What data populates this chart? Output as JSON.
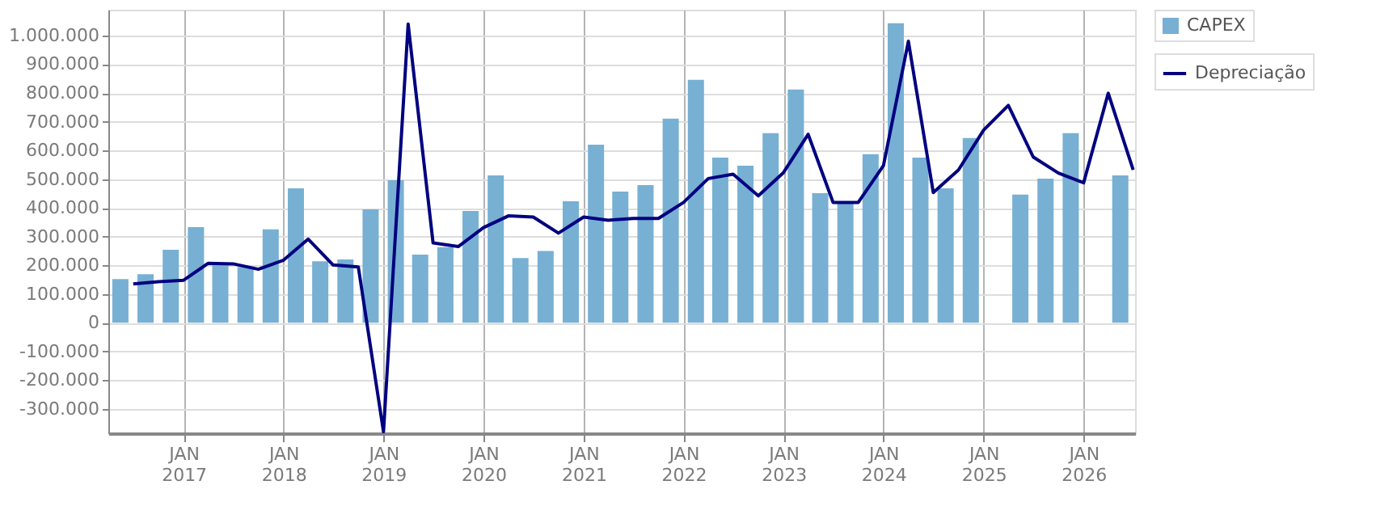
{
  "chart_data": {
    "type": "bar",
    "xlim": [
      "2016-04-01",
      "2026-07-08"
    ],
    "xticks": [
      {
        "value": "2017-01-01",
        "label": "JAN\n2017"
      },
      {
        "value": "2018-01-01",
        "label": "JAN\n2018"
      },
      {
        "value": "2019-01-01",
        "label": "JAN\n2019"
      },
      {
        "value": "2020-01-01",
        "label": "JAN\n2020"
      },
      {
        "value": "2021-01-01",
        "label": "JAN\n2021"
      },
      {
        "value": "2022-01-01",
        "label": "JAN\n2022"
      },
      {
        "value": "2023-01-01",
        "label": "JAN\n2023"
      },
      {
        "value": "2024-01-01",
        "label": "JAN\n2024"
      },
      {
        "value": "2025-01-01",
        "label": "JAN\n2025"
      },
      {
        "value": "2026-01-01",
        "label": "JAN\n2026"
      }
    ],
    "ylim": [
      -385000,
      1090000
    ],
    "yticks": [
      {
        "value": -300000,
        "label": "-300.000"
      },
      {
        "value": -200000,
        "label": "-200.000"
      },
      {
        "value": -100000,
        "label": "-100.000"
      },
      0,
      {
        "value": 100000,
        "label": "100.000"
      },
      {
        "value": 200000,
        "label": "200.000"
      },
      {
        "value": 300000,
        "label": "300.000"
      },
      {
        "value": 400000,
        "label": "400.000"
      },
      {
        "value": 500000,
        "label": "500.000"
      },
      {
        "value": 600000,
        "label": "600.000"
      },
      {
        "value": 700000,
        "label": "700.000"
      },
      {
        "value": 800000,
        "label": "800.000"
      },
      {
        "value": 900000,
        "label": "900.000"
      },
      {
        "value": 1000000,
        "label": "1.000.000"
      }
    ],
    "grid": true,
    "legend": "top right",
    "series": [
      {
        "name": "CAPEX",
        "color": "#77b0d3",
        "x": [
          "2016-05-15",
          "2016-08-15",
          "2016-11-15",
          "2017-02-15",
          "2017-05-15",
          "2017-08-15",
          "2017-11-15",
          "2018-02-15",
          "2018-05-15",
          "2018-08-15",
          "2018-11-15",
          "2019-02-15",
          "2019-05-15",
          "2019-08-15",
          "2019-11-15",
          "2020-02-15",
          "2020-05-15",
          "2020-08-15",
          "2020-11-15",
          "2021-02-15",
          "2021-05-15",
          "2021-08-15",
          "2021-11-15",
          "2022-02-15",
          "2022-05-15",
          "2022-08-15",
          "2022-11-15",
          "2023-02-15",
          "2023-05-15",
          "2023-08-15",
          "2023-11-15",
          "2024-02-15",
          "2024-05-15",
          "2024-08-15",
          "2024-11-15",
          "2025-02-15",
          "2025-05-15",
          "2025-08-15",
          "2025-11-15",
          "2026-02-15",
          "2026-05-15"
        ],
        "values": [
          152000,
          169000,
          254000,
          333000,
          203000,
          194000,
          325000,
          468000,
          214000,
          220000,
          395000,
          496000,
          237000,
          263000,
          389000,
          513000,
          225000,
          250000,
          423000,
          620000,
          457000,
          479000,
          711000,
          846000,
          575000,
          547000,
          660000,
          812000,
          451000,
          419000,
          587000,
          1043000,
          575000,
          468000,
          643000,
          null,
          446000,
          502000,
          660000,
          null,
          513000
        ]
      },
      {
        "name": "Depreciação",
        "type": "line",
        "color": "#000080",
        "x": [
          "2016-07-01",
          "2016-10-01",
          "2017-01-01",
          "2017-04-01",
          "2017-07-01",
          "2017-10-01",
          "2018-01-01",
          "2018-04-01",
          "2018-07-01",
          "2018-10-01",
          "2019-01-01",
          "2019-04-01",
          "2019-07-01",
          "2019-10-01",
          "2020-01-01",
          "2020-04-01",
          "2020-07-01",
          "2020-10-01",
          "2021-01-01",
          "2021-04-01",
          "2021-07-01",
          "2021-10-01",
          "2022-01-01",
          "2022-04-01",
          "2022-07-01",
          "2022-10-01",
          "2023-01-01",
          "2023-04-01",
          "2023-07-01",
          "2023-10-01",
          "2024-01-01",
          "2024-04-01",
          "2024-07-01",
          "2024-10-01",
          "2025-01-01",
          "2025-04-01",
          "2025-07-01",
          "2025-10-01",
          "2026-01-01",
          "2026-04-01",
          "2026-07-01"
        ],
        "values": [
          135000,
          143000,
          148000,
          207000,
          205000,
          186000,
          218000,
          291000,
          201000,
          194000,
          -380000,
          1040000,
          278000,
          265000,
          331000,
          372000,
          368000,
          312000,
          368000,
          357000,
          363000,
          363000,
          419000,
          502000,
          517000,
          442000,
          523000,
          656000,
          419000,
          419000,
          547000,
          980000,
          453000,
          532000,
          671000,
          757000,
          577000,
          521000,
          487000,
          799000,
          532000
        ]
      }
    ]
  }
}
